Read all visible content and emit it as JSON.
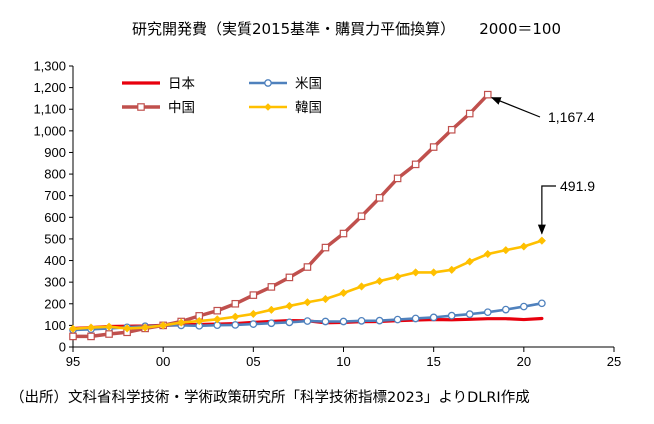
{
  "chart_data": {
    "type": "line",
    "title": "研究開発費（実質2015基準・購買力平価換算）",
    "subtitle": "2000＝100",
    "xlabel": "",
    "ylabel": "",
    "xlim": [
      1995,
      2025
    ],
    "ylim": [
      0,
      1300
    ],
    "x_ticks": [
      95,
      0,
      5,
      10,
      15,
      20,
      25
    ],
    "x_tick_labels": [
      "95",
      "00",
      "05",
      "10",
      "15",
      "20",
      "25"
    ],
    "y_ticks": [
      0,
      100,
      200,
      300,
      400,
      500,
      600,
      700,
      800,
      900,
      1000,
      1100,
      1200,
      1300
    ],
    "y_tick_labels": [
      "0",
      "100",
      "200",
      "300",
      "400",
      "500",
      "600",
      "700",
      "800",
      "900",
      "1,000",
      "1,100",
      "1,200",
      "1,300"
    ],
    "legend_position": "top-left",
    "series": [
      {
        "name": "日本",
        "color": "#e8000d",
        "marker": "none",
        "x": [
          1995,
          1996,
          1997,
          1998,
          1999,
          2000,
          2001,
          2002,
          2003,
          2004,
          2005,
          2006,
          2007,
          2008,
          2009,
          2010,
          2011,
          2012,
          2013,
          2014,
          2015,
          2016,
          2017,
          2018,
          2019,
          2020,
          2021
        ],
        "values": [
          86,
          90,
          95,
          96,
          97,
          100,
          103,
          104,
          106,
          108,
          114,
          118,
          122,
          121,
          112,
          114,
          117,
          118,
          122,
          125,
          127,
          126,
          128,
          131,
          131,
          127,
          132
        ]
      },
      {
        "name": "米国",
        "color": "#4f81bd",
        "marker": "circle",
        "x": [
          1995,
          1996,
          1997,
          1998,
          1999,
          2000,
          2001,
          2002,
          2003,
          2004,
          2005,
          2006,
          2007,
          2008,
          2009,
          2010,
          2011,
          2012,
          2013,
          2014,
          2015,
          2016,
          2017,
          2018,
          2019,
          2020,
          2021
        ],
        "values": [
          79,
          82,
          86,
          91,
          96,
          100,
          100,
          98,
          101,
          102,
          106,
          110,
          114,
          120,
          118,
          118,
          121,
          122,
          127,
          132,
          137,
          145,
          152,
          161,
          173,
          187,
          202
        ]
      },
      {
        "name": "中国",
        "color": "#c0504d",
        "marker": "square",
        "x": [
          1995,
          1996,
          1997,
          1998,
          1999,
          2000,
          2001,
          2002,
          2003,
          2004,
          2005,
          2006,
          2007,
          2008,
          2009,
          2010,
          2011,
          2012,
          2013,
          2014,
          2015,
          2016,
          2017,
          2018
        ],
        "values": [
          49,
          49,
          60,
          68,
          86,
          100,
          118,
          144,
          168,
          200,
          240,
          278,
          322,
          370,
          460,
          525,
          605,
          690,
          780,
          845,
          925,
          1005,
          1080,
          1167.4
        ]
      },
      {
        "name": "韓国",
        "color": "#ffc000",
        "marker": "diamond",
        "x": [
          1995,
          1996,
          1997,
          1998,
          1999,
          2000,
          2001,
          2002,
          2003,
          2004,
          2005,
          2006,
          2007,
          2008,
          2009,
          2010,
          2011,
          2012,
          2013,
          2014,
          2015,
          2016,
          2017,
          2018,
          2019,
          2020,
          2021
        ],
        "values": [
          84,
          90,
          94,
          86,
          90,
          100,
          113,
          120,
          128,
          140,
          153,
          172,
          190,
          207,
          222,
          250,
          280,
          305,
          325,
          345,
          345,
          357,
          395,
          430,
          448,
          465,
          491.9
        ]
      }
    ],
    "annotations": [
      {
        "label": "1,167.4",
        "series": "中国",
        "x": 2018,
        "y": 1167.4
      },
      {
        "label": "491.9",
        "series": "韓国",
        "x": 2021,
        "y": 491.9
      }
    ],
    "source": "（出所）文科省科学技術・学術政策研究所「科学技術指標2023」よりDLRI作成"
  }
}
